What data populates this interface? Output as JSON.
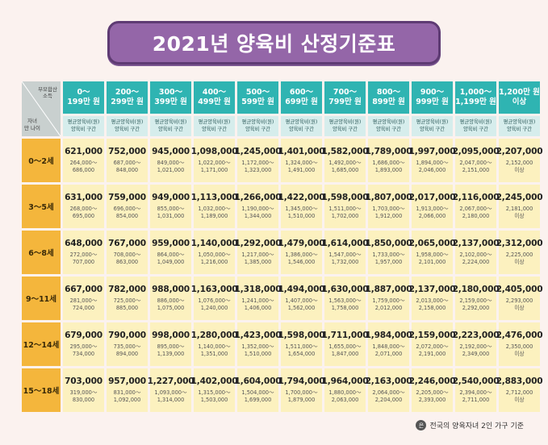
{
  "title": "2021년 양육비 산정기준표",
  "corner": {
    "top": "부모합산\n소득",
    "bottom": "자녀\n만 나이"
  },
  "columns": [
    {
      "l1": "0～",
      "l2": "199만 원"
    },
    {
      "l1": "200～",
      "l2": "299만 원"
    },
    {
      "l1": "300～",
      "l2": "399만 원"
    },
    {
      "l1": "400～",
      "l2": "499만 원"
    },
    {
      "l1": "500～",
      "l2": "599만 원"
    },
    {
      "l1": "600～",
      "l2": "699만 원"
    },
    {
      "l1": "700～",
      "l2": "799만 원"
    },
    {
      "l1": "800～",
      "l2": "899만 원"
    },
    {
      "l1": "900～",
      "l2": "999만 원"
    },
    {
      "l1": "1,000～",
      "l2": "1,199만 원"
    },
    {
      "l1": "1,200만 원",
      "l2": "이상"
    }
  ],
  "subheader": {
    "l1": "평균양육비(원)",
    "l2": "양육비 구간"
  },
  "rows": [
    {
      "age": "0～2세",
      "cells": [
        {
          "avg": "621,000",
          "r1": "264,000～",
          "r2": "686,000"
        },
        {
          "avg": "752,000",
          "r1": "687,000～",
          "r2": "848,000"
        },
        {
          "avg": "945,000",
          "r1": "849,000～",
          "r2": "1,021,000"
        },
        {
          "avg": "1,098,000",
          "r1": "1,022,000～",
          "r2": "1,171,000"
        },
        {
          "avg": "1,245,000",
          "r1": "1,172,000～",
          "r2": "1,323,000"
        },
        {
          "avg": "1,401,000",
          "r1": "1,324,000～",
          "r2": "1,491,000"
        },
        {
          "avg": "1,582,000",
          "r1": "1,492,000～",
          "r2": "1,685,000"
        },
        {
          "avg": "1,789,000",
          "r1": "1,686,000～",
          "r2": "1,893,000"
        },
        {
          "avg": "1,997,000",
          "r1": "1,894,000～",
          "r2": "2,046,000"
        },
        {
          "avg": "2,095,000",
          "r1": "2,047,000～",
          "r2": "2,151,000"
        },
        {
          "avg": "2,207,000",
          "r1": "2,152,000",
          "r2": "이상"
        }
      ]
    },
    {
      "age": "3～5세",
      "cells": [
        {
          "avg": "631,000",
          "r1": "268,000～",
          "r2": "695,000"
        },
        {
          "avg": "759,000",
          "r1": "696,000～",
          "r2": "854,000"
        },
        {
          "avg": "949,000",
          "r1": "855,000～",
          "r2": "1,031,000"
        },
        {
          "avg": "1,113,000",
          "r1": "1,032,000～",
          "r2": "1,189,000"
        },
        {
          "avg": "1,266,000",
          "r1": "1,190,000～",
          "r2": "1,344,000"
        },
        {
          "avg": "1,422,000",
          "r1": "1,345,000～",
          "r2": "1,510,000"
        },
        {
          "avg": "1,598,000",
          "r1": "1,511,000～",
          "r2": "1,702,000"
        },
        {
          "avg": "1,807,000",
          "r1": "1,703,000～",
          "r2": "1,912,000"
        },
        {
          "avg": "2,017,000",
          "r1": "1,913,000～",
          "r2": "2,066,000"
        },
        {
          "avg": "2,116,000",
          "r1": "2,067,000～",
          "r2": "2,180,000"
        },
        {
          "avg": "2,245,000",
          "r1": "2,181,000",
          "r2": "이상"
        }
      ]
    },
    {
      "age": "6～8세",
      "cells": [
        {
          "avg": "648,000",
          "r1": "272,000～",
          "r2": "707,000"
        },
        {
          "avg": "767,000",
          "r1": "708,000～",
          "r2": "863,000"
        },
        {
          "avg": "959,000",
          "r1": "864,000～",
          "r2": "1,049,000"
        },
        {
          "avg": "1,140,000",
          "r1": "1,050,000～",
          "r2": "1,216,000"
        },
        {
          "avg": "1,292,000",
          "r1": "1,217,000～",
          "r2": "1,385,000"
        },
        {
          "avg": "1,479,000",
          "r1": "1,386,000～",
          "r2": "1,546,000"
        },
        {
          "avg": "1,614,000",
          "r1": "1,547,000～",
          "r2": "1,732,000"
        },
        {
          "avg": "1,850,000",
          "r1": "1,733,000～",
          "r2": "1,957,000"
        },
        {
          "avg": "2,065,000",
          "r1": "1,958,000～",
          "r2": "2,101,000"
        },
        {
          "avg": "2,137,000",
          "r1": "2,102,000～",
          "r2": "2,224,000"
        },
        {
          "avg": "2,312,000",
          "r1": "2,225,000",
          "r2": "이상"
        }
      ]
    },
    {
      "age": "9～11세",
      "cells": [
        {
          "avg": "667,000",
          "r1": "281,000～",
          "r2": "724,000"
        },
        {
          "avg": "782,000",
          "r1": "725,000～",
          "r2": "885,000"
        },
        {
          "avg": "988,000",
          "r1": "886,000～",
          "r2": "1,075,000"
        },
        {
          "avg": "1,163,000",
          "r1": "1,076,000～",
          "r2": "1,240,000"
        },
        {
          "avg": "1,318,000",
          "r1": "1,241,000～",
          "r2": "1,406,000"
        },
        {
          "avg": "1,494,000",
          "r1": "1,407,000～",
          "r2": "1,562,000"
        },
        {
          "avg": "1,630,000",
          "r1": "1,563,000～",
          "r2": "1,758,000"
        },
        {
          "avg": "1,887,000",
          "r1": "1,759,000～",
          "r2": "2,012,000"
        },
        {
          "avg": "2,137,000",
          "r1": "2,013,000～",
          "r2": "2,158,000"
        },
        {
          "avg": "2,180,000",
          "r1": "2,159,000～",
          "r2": "2,292,000"
        },
        {
          "avg": "2,405,000",
          "r1": "2,293,000",
          "r2": "이상"
        }
      ]
    },
    {
      "age": "12～14세",
      "cells": [
        {
          "avg": "679,000",
          "r1": "295,000～",
          "r2": "734,000"
        },
        {
          "avg": "790,000",
          "r1": "735,000～",
          "r2": "894,000"
        },
        {
          "avg": "998,000",
          "r1": "895,000～",
          "r2": "1,139,000"
        },
        {
          "avg": "1,280,000",
          "r1": "1,140,000～",
          "r2": "1,351,000"
        },
        {
          "avg": "1,423,000",
          "r1": "1,352,000～",
          "r2": "1,510,000"
        },
        {
          "avg": "1,598,000",
          "r1": "1,511,000～",
          "r2": "1,654,000"
        },
        {
          "avg": "1,711,000",
          "r1": "1,655,000～",
          "r2": "1,847,000"
        },
        {
          "avg": "1,984,000",
          "r1": "1,848,000～",
          "r2": "2,071,000"
        },
        {
          "avg": "2,159,000",
          "r1": "2,072,000～",
          "r2": "2,191,000"
        },
        {
          "avg": "2,223,000",
          "r1": "2,192,000～",
          "r2": "2,349,000"
        },
        {
          "avg": "2,476,000",
          "r1": "2,350,000",
          "r2": "이상"
        }
      ]
    },
    {
      "age": "15～18세",
      "cells": [
        {
          "avg": "703,000",
          "r1": "319,000～",
          "r2": "830,000"
        },
        {
          "avg": "957,000",
          "r1": "831,000～",
          "r2": "1,092,000"
        },
        {
          "avg": "1,227,000",
          "r1": "1,093,000～",
          "r2": "1,314,000"
        },
        {
          "avg": "1,402,000",
          "r1": "1,315,000～",
          "r2": "1,503,000"
        },
        {
          "avg": "1,604,000",
          "r1": "1,504,000～",
          "r2": "1,699,000"
        },
        {
          "avg": "1,794,000",
          "r1": "1,700,000～",
          "r2": "1,879,000"
        },
        {
          "avg": "1,964,000",
          "r1": "1,880,000～",
          "r2": "2,063,000"
        },
        {
          "avg": "2,163,000",
          "r1": "2,064,000～",
          "r2": "2,204,000"
        },
        {
          "avg": "2,246,000",
          "r1": "2,205,000～",
          "r2": "2,393,000"
        },
        {
          "avg": "2,540,000",
          "r1": "2,394,000～",
          "r2": "2,711,000"
        },
        {
          "avg": "2,883,000",
          "r1": "2,712,000",
          "r2": "이상"
        }
      ]
    }
  ],
  "footnote": {
    "mark": "은",
    "text": "전국의 양육자녀 2인 가구 기준"
  },
  "colors": {
    "title_bg": "#9466a8",
    "header_teal": "#2fb4b2",
    "row_orange": "#f4b63c",
    "cell_yellow": "#fcf1bf",
    "background": "#fbf2ef"
  }
}
